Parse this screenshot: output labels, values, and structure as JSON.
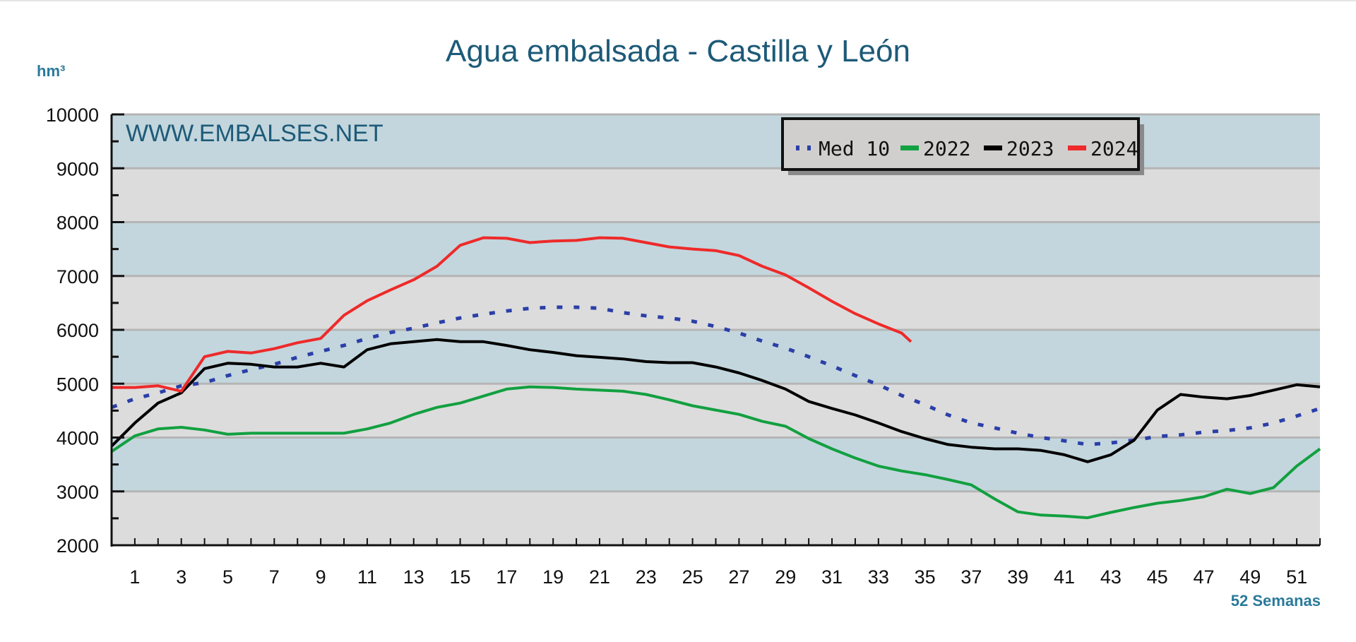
{
  "chart_data": {
    "type": "line",
    "title": "Agua embalsada - Castilla y León",
    "ylabel": "hm³",
    "xlabel": "52 Semanas",
    "watermark": "WWW.EMBALSES.NET",
    "xlim": [
      0,
      52
    ],
    "ylim": [
      2000,
      10000
    ],
    "yticks": [
      2000,
      3000,
      4000,
      5000,
      6000,
      7000,
      8000,
      9000,
      10000
    ],
    "xticks": [
      1,
      3,
      5,
      7,
      9,
      11,
      13,
      15,
      17,
      19,
      21,
      23,
      25,
      27,
      29,
      31,
      33,
      35,
      37,
      39,
      41,
      43,
      45,
      47,
      49,
      51
    ],
    "grid": true,
    "legend_position": "top-right",
    "band_colors": [
      "#dcdcdc",
      "#c3d6dd"
    ],
    "series": [
      {
        "name": "Med 10",
        "color": "#2b3fa8",
        "style": "dotted",
        "x": [
          0,
          1,
          2,
          3,
          4,
          5,
          6,
          7,
          8,
          9,
          10,
          11,
          12,
          13,
          14,
          15,
          16,
          17,
          18,
          19,
          20,
          21,
          22,
          23,
          24,
          25,
          26,
          27,
          28,
          29,
          30,
          31,
          32,
          33,
          34,
          35,
          36,
          37,
          38,
          39,
          40,
          41,
          42,
          43,
          44,
          45,
          46,
          47,
          48,
          49,
          50,
          51,
          52
        ],
        "y": [
          4560,
          4720,
          4830,
          4960,
          5020,
          5150,
          5260,
          5360,
          5490,
          5600,
          5710,
          5840,
          5950,
          6030,
          6130,
          6220,
          6290,
          6350,
          6400,
          6420,
          6420,
          6400,
          6320,
          6260,
          6220,
          6160,
          6060,
          5940,
          5790,
          5660,
          5500,
          5330,
          5150,
          4980,
          4780,
          4610,
          4420,
          4270,
          4180,
          4080,
          4000,
          3940,
          3870,
          3900,
          3950,
          4020,
          4050,
          4100,
          4130,
          4180,
          4270,
          4400,
          4540
        ]
      },
      {
        "name": "2022",
        "color": "#12a040",
        "style": "solid",
        "x": [
          0,
          1,
          2,
          3,
          4,
          5,
          6,
          7,
          8,
          9,
          10,
          11,
          12,
          13,
          14,
          15,
          16,
          17,
          18,
          19,
          20,
          21,
          22,
          23,
          24,
          25,
          26,
          27,
          28,
          29,
          30,
          31,
          32,
          33,
          34,
          35,
          36,
          37,
          38,
          39,
          40,
          41,
          42,
          43,
          44,
          45,
          46,
          47,
          48,
          49,
          50,
          51,
          52
        ],
        "y": [
          3740,
          4030,
          4160,
          4190,
          4140,
          4060,
          4080,
          4080,
          4080,
          4080,
          4080,
          4160,
          4270,
          4430,
          4560,
          4640,
          4770,
          4900,
          4940,
          4930,
          4900,
          4880,
          4860,
          4800,
          4700,
          4590,
          4510,
          4430,
          4300,
          4210,
          3980,
          3790,
          3620,
          3470,
          3380,
          3310,
          3220,
          3120,
          2860,
          2620,
          2560,
          2540,
          2510,
          2610,
          2700,
          2780,
          2830,
          2900,
          3040,
          2960,
          3070,
          3470,
          3790
        ]
      },
      {
        "name": "2023",
        "color": "#000000",
        "style": "solid",
        "x": [
          0,
          1,
          2,
          3,
          4,
          5,
          6,
          7,
          8,
          9,
          10,
          11,
          12,
          13,
          14,
          15,
          16,
          17,
          18,
          19,
          20,
          21,
          22,
          23,
          24,
          25,
          26,
          27,
          28,
          29,
          30,
          31,
          32,
          33,
          34,
          35,
          36,
          37,
          38,
          39,
          40,
          41,
          42,
          43,
          44,
          45,
          46,
          47,
          48,
          49,
          50,
          51,
          52
        ],
        "y": [
          3840,
          4270,
          4640,
          4830,
          5280,
          5380,
          5360,
          5310,
          5310,
          5380,
          5310,
          5630,
          5740,
          5780,
          5820,
          5780,
          5780,
          5710,
          5630,
          5580,
          5520,
          5490,
          5460,
          5410,
          5390,
          5390,
          5310,
          5200,
          5060,
          4900,
          4670,
          4540,
          4420,
          4270,
          4110,
          3980,
          3870,
          3820,
          3790,
          3790,
          3760,
          3680,
          3550,
          3680,
          3950,
          4510,
          4800,
          4750,
          4720,
          4780,
          4880,
          4980,
          4940
        ]
      },
      {
        "name": "2024",
        "color": "#ee2a2a",
        "style": "solid",
        "x": [
          0,
          1,
          2,
          3,
          4,
          5,
          6,
          7,
          8,
          9,
          10,
          11,
          12,
          13,
          14,
          15,
          16,
          17,
          18,
          19,
          20,
          21,
          22,
          23,
          24,
          25,
          26,
          27,
          28,
          29,
          30,
          31,
          32,
          33,
          34,
          34.4
        ],
        "y": [
          4930,
          4930,
          4960,
          4860,
          5500,
          5600,
          5570,
          5650,
          5760,
          5840,
          6270,
          6540,
          6740,
          6930,
          7180,
          7570,
          7710,
          7700,
          7620,
          7650,
          7660,
          7710,
          7700,
          7620,
          7540,
          7500,
          7470,
          7380,
          7180,
          7020,
          6780,
          6530,
          6300,
          6110,
          5940,
          5780
        ]
      }
    ]
  }
}
